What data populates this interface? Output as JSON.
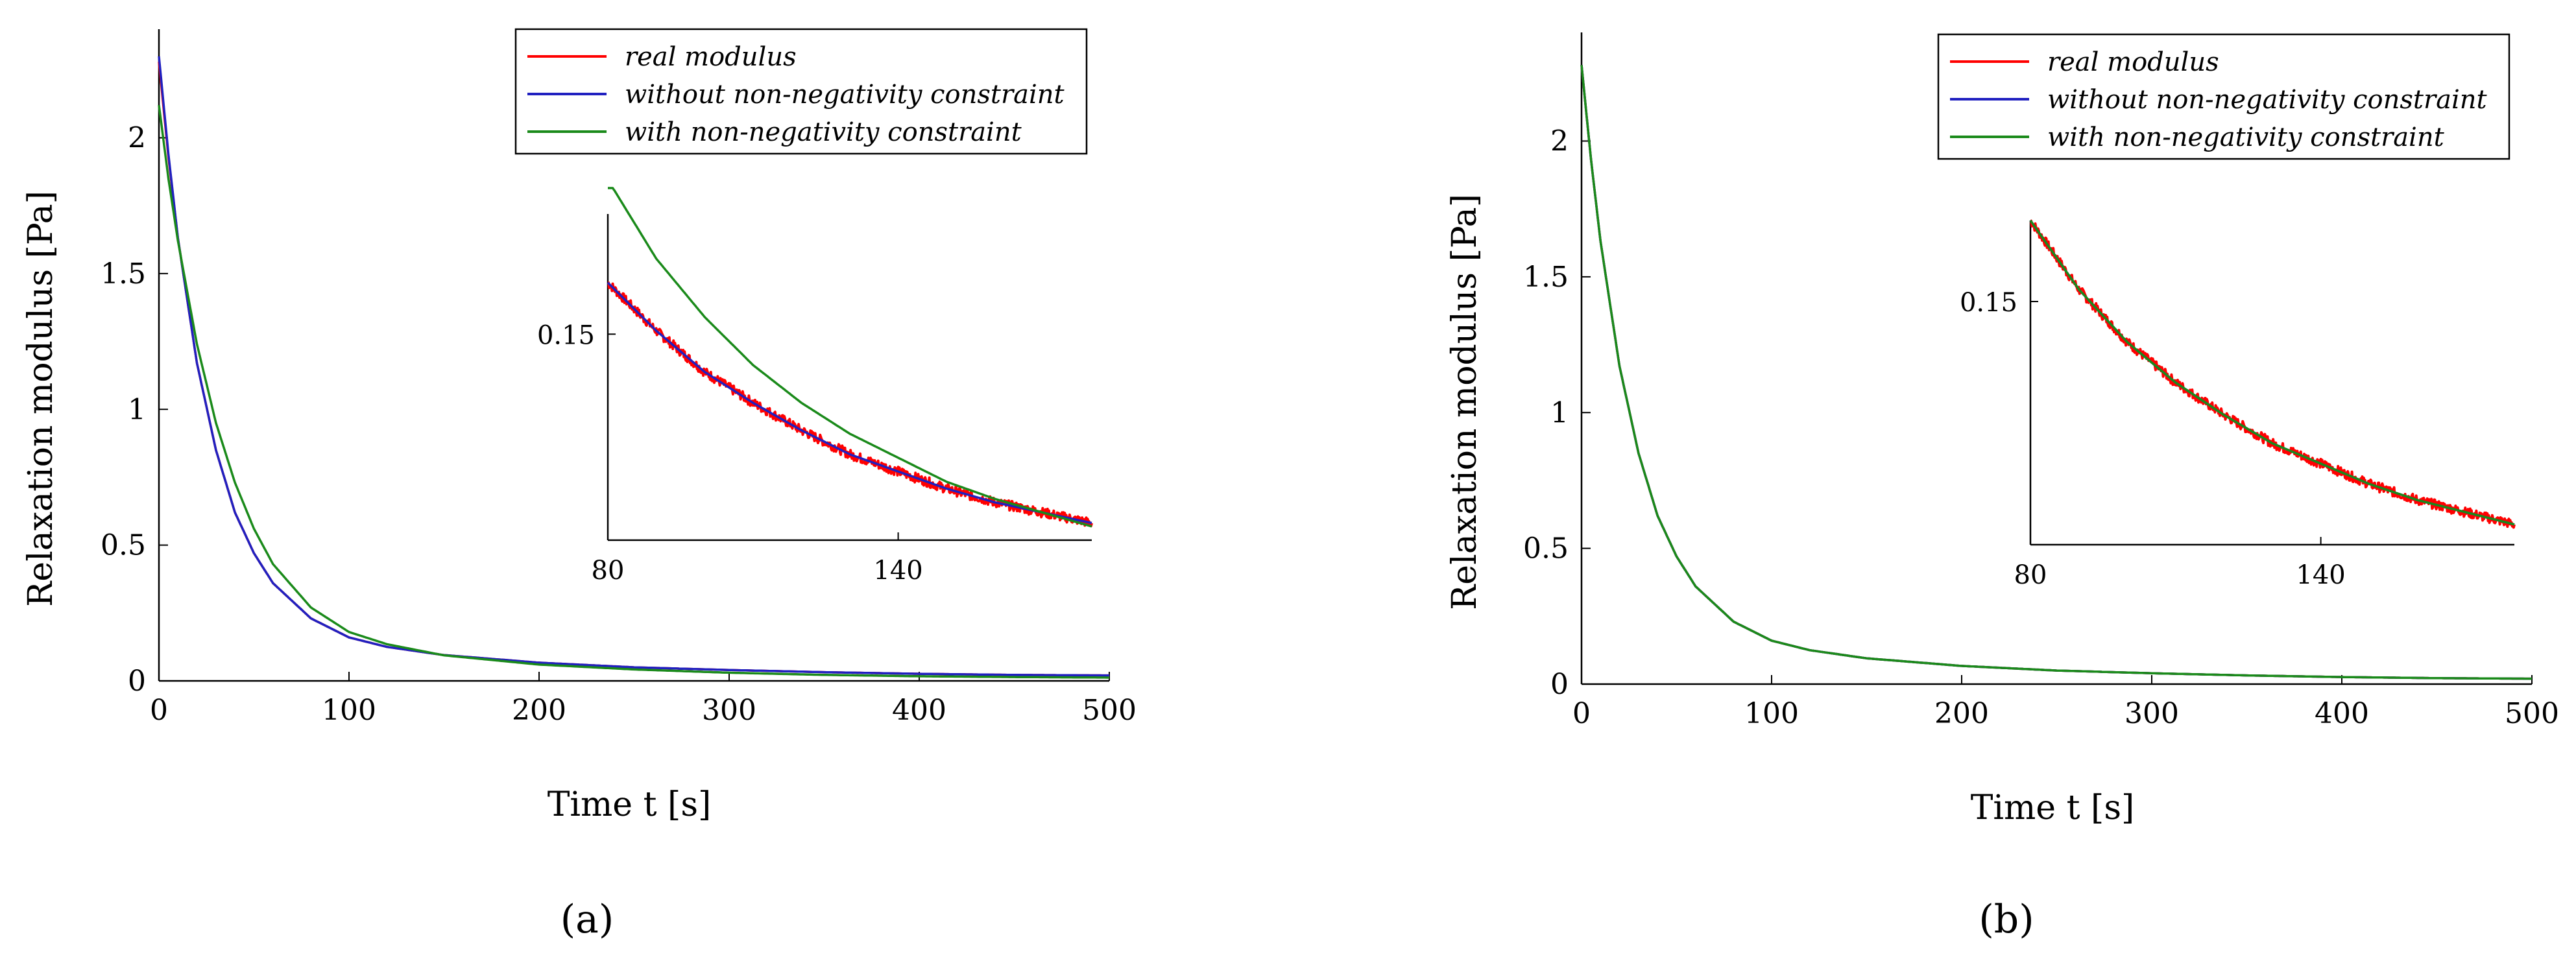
{
  "figure": {
    "panels": [
      "(a)",
      "(b)"
    ]
  },
  "chart_data": [
    {
      "panel_label": "(a)",
      "type": "line",
      "xlabel": "Time  t [s]",
      "ylabel": "Relaxation modulus [Pa]",
      "xlim": [
        0,
        500
      ],
      "ylim": [
        0,
        2.4
      ],
      "xticks": [
        "0",
        "100",
        "200",
        "300",
        "400",
        "500"
      ],
      "yticks": [
        "0",
        "0.5",
        "1",
        "1.5",
        "2"
      ],
      "legend_position": "top-right",
      "series": [
        {
          "name": "real modulus",
          "color": "#ff0000",
          "x": [
            0,
            5,
            10,
            20,
            30,
            40,
            50,
            60,
            80,
            100,
            120,
            150,
            200,
            250,
            300,
            350,
            400,
            450,
            500
          ],
          "y": [
            2.28,
            1.93,
            1.63,
            1.17,
            0.85,
            0.62,
            0.47,
            0.36,
            0.23,
            0.16,
            0.125,
            0.095,
            0.067,
            0.05,
            0.04,
            0.032,
            0.026,
            0.022,
            0.02
          ]
        },
        {
          "name": "without non-negativity constraint",
          "color": "#2020c0",
          "x": [
            0,
            5,
            10,
            20,
            30,
            40,
            50,
            60,
            80,
            100,
            120,
            150,
            200,
            250,
            300,
            350,
            400,
            450,
            500
          ],
          "y": [
            2.3,
            1.94,
            1.63,
            1.17,
            0.85,
            0.62,
            0.47,
            0.36,
            0.23,
            0.16,
            0.125,
            0.095,
            0.067,
            0.05,
            0.04,
            0.032,
            0.026,
            0.022,
            0.02
          ]
        },
        {
          "name": "with non-negativity constraint",
          "color": "#1a8a1a",
          "x": [
            0,
            5,
            10,
            20,
            30,
            40,
            50,
            60,
            80,
            100,
            120,
            150,
            200,
            250,
            300,
            350,
            400,
            450,
            500
          ],
          "y": [
            2.12,
            1.85,
            1.62,
            1.24,
            0.95,
            0.73,
            0.56,
            0.43,
            0.27,
            0.18,
            0.135,
            0.094,
            0.06,
            0.042,
            0.03,
            0.022,
            0.017,
            0.014,
            0.012
          ]
        }
      ],
      "inset": {
        "xlim": [
          80,
          180
        ],
        "ylim": [
          0.09,
          0.185
        ],
        "xticks": [
          "80",
          "140"
        ],
        "yticks": [
          "0.15"
        ],
        "series": [
          {
            "name": "real modulus",
            "color": "#ff0000",
            "noisy": true,
            "x": [
              80,
              90,
              100,
              110,
              120,
              130,
              140,
              150,
              160,
              170,
              180
            ],
            "y": [
              0.165,
              0.151,
              0.139,
              0.13,
              0.122,
              0.115,
              0.11,
              0.105,
              0.101,
              0.098,
              0.095
            ]
          },
          {
            "name": "without non-negativity constraint",
            "color": "#2020c0",
            "x": [
              80,
              90,
              100,
              110,
              120,
              130,
              140,
              150,
              160,
              170,
              180
            ],
            "y": [
              0.165,
              0.151,
              0.139,
              0.13,
              0.122,
              0.115,
              0.11,
              0.105,
              0.101,
              0.098,
              0.095
            ]
          },
          {
            "name": "with non-negativity constraint",
            "color": "#1a8a1a",
            "x": [
              80,
              90,
              100,
              110,
              120,
              130,
              140,
              150,
              160,
              170,
              180
            ],
            "y": [
              0.195,
              0.172,
              0.155,
              0.141,
              0.13,
              0.121,
              0.114,
              0.107,
              0.102,
              0.098,
              0.094
            ]
          }
        ]
      }
    },
    {
      "panel_label": "(b)",
      "type": "line",
      "xlabel": "Time  t [s]",
      "ylabel": "Relaxation modulus [Pa]",
      "xlim": [
        0,
        500
      ],
      "ylim": [
        0,
        2.4
      ],
      "xticks": [
        "0",
        "100",
        "200",
        "300",
        "400",
        "500"
      ],
      "yticks": [
        "0",
        "0.5",
        "1",
        "1.5",
        "2"
      ],
      "legend_position": "top-right",
      "series": [
        {
          "name": "real modulus",
          "color": "#ff0000",
          "x": [
            0,
            5,
            10,
            20,
            30,
            40,
            50,
            60,
            80,
            100,
            120,
            150,
            200,
            250,
            300,
            350,
            400,
            450,
            500
          ],
          "y": [
            2.28,
            1.93,
            1.63,
            1.17,
            0.85,
            0.62,
            0.47,
            0.36,
            0.23,
            0.16,
            0.125,
            0.095,
            0.067,
            0.05,
            0.04,
            0.032,
            0.026,
            0.022,
            0.02
          ]
        },
        {
          "name": "without non-negativity constraint",
          "color": "#2020c0",
          "x": [
            0,
            5,
            10,
            20,
            30,
            40,
            50,
            60,
            80,
            100,
            120,
            150,
            200,
            250,
            300,
            350,
            400,
            450,
            500
          ],
          "y": [
            2.28,
            1.93,
            1.63,
            1.17,
            0.85,
            0.62,
            0.47,
            0.36,
            0.23,
            0.16,
            0.125,
            0.095,
            0.067,
            0.05,
            0.04,
            0.032,
            0.026,
            0.022,
            0.02
          ]
        },
        {
          "name": "with non-negativity constraint",
          "color": "#1a8a1a",
          "x": [
            0,
            5,
            10,
            20,
            30,
            40,
            50,
            60,
            80,
            100,
            120,
            150,
            200,
            250,
            300,
            350,
            400,
            450,
            500
          ],
          "y": [
            2.28,
            1.93,
            1.63,
            1.17,
            0.85,
            0.62,
            0.47,
            0.36,
            0.23,
            0.16,
            0.125,
            0.095,
            0.067,
            0.05,
            0.04,
            0.032,
            0.026,
            0.022,
            0.02
          ]
        }
      ],
      "inset": {
        "xlim": [
          80,
          180
        ],
        "ylim": [
          0.09,
          0.17
        ],
        "xticks": [
          "80",
          "140"
        ],
        "yticks": [
          "0.15"
        ],
        "series": [
          {
            "name": "real modulus",
            "color": "#ff0000",
            "noisy": true,
            "x": [
              80,
              90,
              100,
              110,
              120,
              130,
              140,
              150,
              160,
              170,
              180
            ],
            "y": [
              0.17,
              0.153,
              0.14,
              0.13,
              0.122,
              0.115,
              0.11,
              0.105,
              0.101,
              0.098,
              0.095
            ]
          },
          {
            "name": "without non-negativity constraint",
            "color": "#2020c0",
            "x": [
              80,
              90,
              100,
              110,
              120,
              130,
              140,
              150,
              160,
              170,
              180
            ],
            "y": [
              0.17,
              0.153,
              0.14,
              0.13,
              0.122,
              0.115,
              0.11,
              0.105,
              0.101,
              0.098,
              0.095
            ]
          },
          {
            "name": "with non-negativity constraint",
            "color": "#1a8a1a",
            "x": [
              80,
              90,
              100,
              110,
              120,
              130,
              140,
              150,
              160,
              170,
              180
            ],
            "y": [
              0.17,
              0.153,
              0.14,
              0.13,
              0.122,
              0.115,
              0.11,
              0.105,
              0.101,
              0.098,
              0.095
            ]
          }
        ]
      }
    }
  ]
}
